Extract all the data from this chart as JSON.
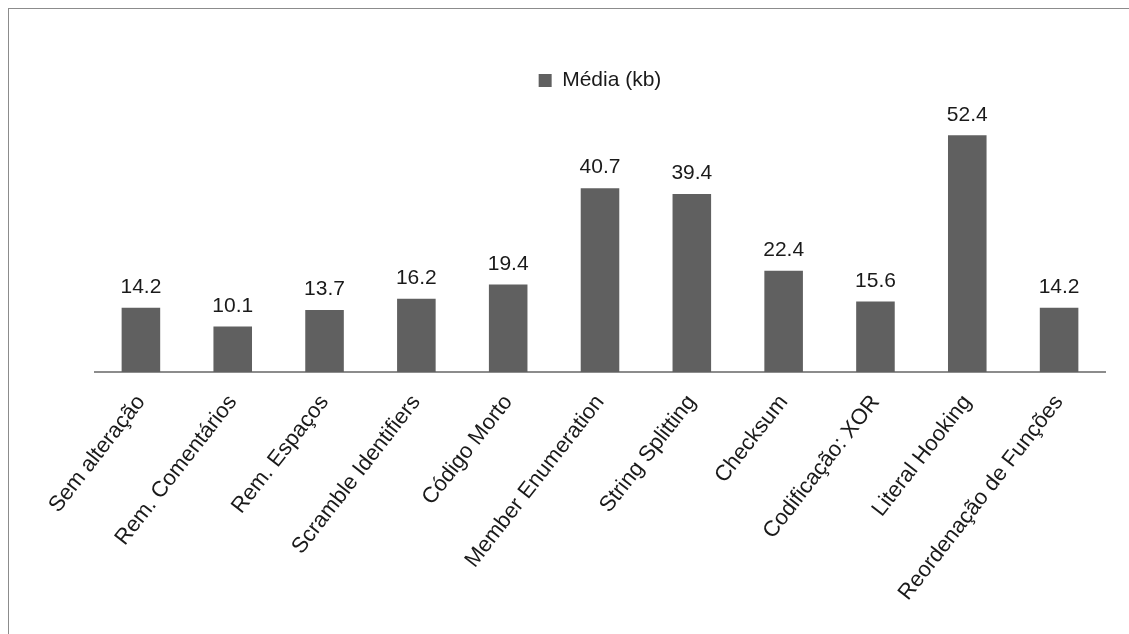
{
  "chart_data": {
    "type": "bar",
    "legend": "top",
    "grid": false,
    "data_labels": true,
    "categories": [
      "Sem alteração",
      "Rem. Comentários",
      "Rem. Espaços",
      "Scramble Identifiers",
      "Código Morto",
      "Member Enumeration",
      "String Splitting",
      "Checksum",
      "Codificação: XOR",
      "Literal Hooking",
      "Reordenação de Funções"
    ],
    "series": [
      {
        "name": "Média (kb)",
        "color": "#606060",
        "values": [
          14.2,
          10.1,
          13.7,
          16.2,
          19.4,
          40.7,
          39.4,
          22.4,
          15.6,
          52.4,
          14.2
        ]
      }
    ]
  }
}
